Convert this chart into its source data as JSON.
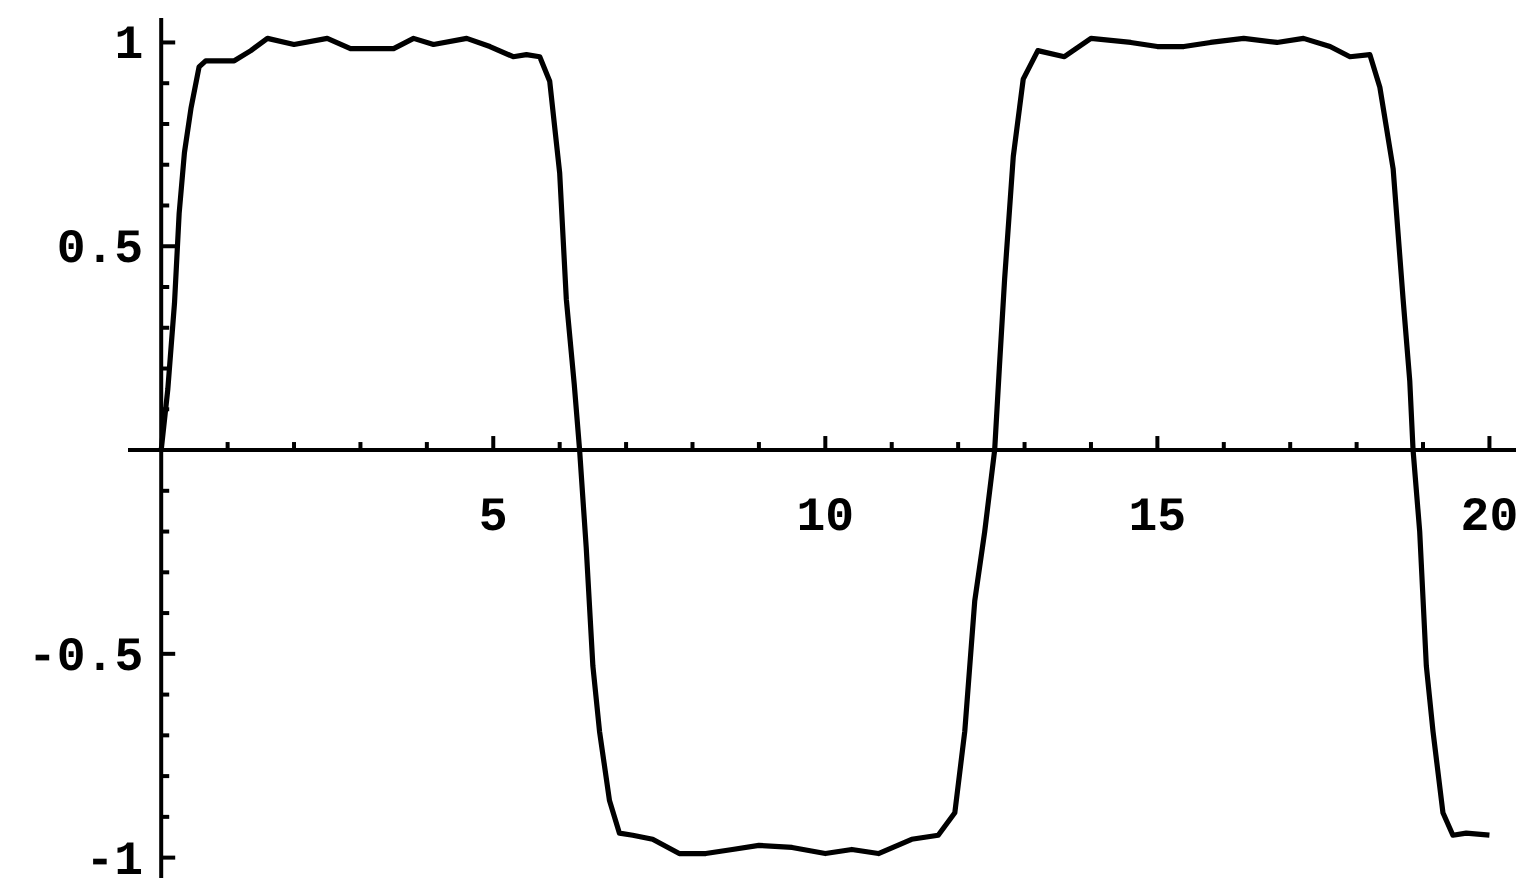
{
  "chart_data": {
    "type": "line",
    "color": "#000000",
    "line_style": "solid",
    "x": [
      0,
      0.1,
      0.2,
      0.27,
      0.35,
      0.45,
      0.57,
      0.67,
      1.1,
      1.35,
      1.6,
      2.0,
      2.5,
      2.85,
      3.5,
      3.8,
      4.1,
      4.6,
      4.95,
      5.3,
      5.5,
      5.7,
      5.85,
      6.0,
      6.1,
      6.22,
      6.3,
      6.4,
      6.5,
      6.6,
      6.75,
      6.9,
      7.1,
      7.4,
      7.8,
      8.2,
      8.6,
      9.0,
      9.5,
      10.0,
      10.4,
      10.8,
      11.3,
      11.7,
      11.95,
      12.1,
      12.25,
      12.4,
      12.55,
      12.62,
      12.7,
      12.83,
      12.98,
      13.2,
      13.6,
      14.0,
      14.6,
      15.0,
      15.4,
      15.8,
      16.3,
      16.8,
      17.2,
      17.6,
      17.9,
      18.2,
      18.35,
      18.55,
      18.7,
      18.8,
      18.85,
      18.95,
      19.05,
      19.15,
      19.3,
      19.45,
      19.65,
      20.0
    ],
    "values": [
      0,
      0.15,
      0.36,
      0.58,
      0.73,
      0.84,
      0.94,
      0.955,
      0.955,
      0.98,
      1.01,
      0.995,
      1.01,
      0.985,
      0.985,
      1.01,
      0.995,
      1.01,
      0.99,
      0.965,
      0.97,
      0.965,
      0.905,
      0.68,
      0.37,
      0.16,
      0,
      -0.24,
      -0.53,
      -0.69,
      -0.86,
      -0.94,
      -0.945,
      -0.955,
      -0.99,
      -0.99,
      -0.98,
      -0.97,
      -0.975,
      -0.99,
      -0.98,
      -0.99,
      -0.955,
      -0.945,
      -0.89,
      -0.69,
      -0.37,
      -0.2,
      0,
      0.2,
      0.42,
      0.72,
      0.91,
      0.98,
      0.965,
      1.01,
      1.0,
      0.99,
      0.99,
      1.0,
      1.01,
      1.0,
      1.01,
      0.99,
      0.965,
      0.97,
      0.89,
      0.69,
      0.37,
      0.17,
      0,
      -0.2,
      -0.53,
      -0.69,
      -0.89,
      -0.945,
      -0.94,
      -0.945
    ],
    "xlim": [
      -0.5,
      20.4
    ],
    "ylim": [
      -1.05,
      1.06
    ],
    "xticks": [
      {
        "value": 1,
        "label": null
      },
      {
        "value": 2,
        "label": null
      },
      {
        "value": 3,
        "label": null
      },
      {
        "value": 4,
        "label": null
      },
      5,
      {
        "value": 6,
        "label": null
      },
      {
        "value": 7,
        "label": null
      },
      {
        "value": 8,
        "label": null
      },
      {
        "value": 9,
        "label": null
      },
      10,
      {
        "value": 11,
        "label": null
      },
      {
        "value": 12,
        "label": null
      },
      {
        "value": 13,
        "label": null
      },
      {
        "value": 14,
        "label": null
      },
      15,
      {
        "value": 16,
        "label": null
      },
      {
        "value": 17,
        "label": null
      },
      {
        "value": 18,
        "label": null
      },
      {
        "value": 19,
        "label": null
      },
      20
    ],
    "yticks": [
      -1,
      {
        "value": -0.9,
        "label": null
      },
      {
        "value": -0.8,
        "label": null
      },
      {
        "value": -0.7,
        "label": null
      },
      {
        "value": -0.6,
        "label": null
      },
      -0.5,
      {
        "value": -0.4,
        "label": null
      },
      {
        "value": -0.3,
        "label": null
      },
      {
        "value": -0.2,
        "label": null
      },
      {
        "value": -0.1,
        "label": null
      },
      {
        "value": 0.1,
        "label": null
      },
      {
        "value": 0.2,
        "label": null
      },
      {
        "value": 0.3,
        "label": null
      },
      {
        "value": 0.4,
        "label": null
      },
      0.5,
      {
        "value": 0.6,
        "label": null
      },
      {
        "value": 0.7,
        "label": null
      },
      {
        "value": 0.8,
        "label": null
      },
      {
        "value": 0.9,
        "label": null
      },
      1
    ]
  }
}
